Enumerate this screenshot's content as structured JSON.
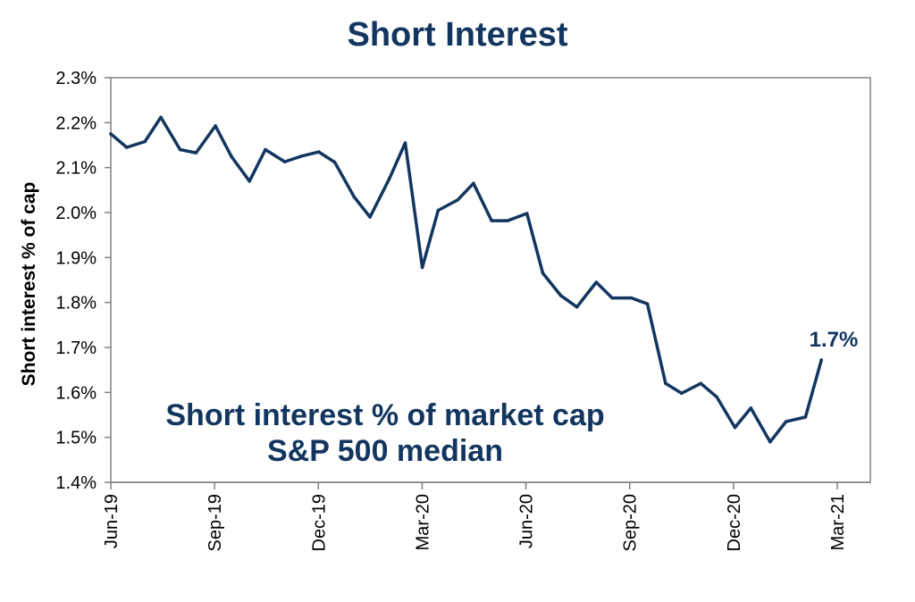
{
  "chart_data": {
    "type": "line",
    "title": "Short Interest",
    "xlabel": "",
    "ylabel": "Short interest % of cap",
    "ylim": [
      1.4,
      2.3
    ],
    "yticks": [
      "2.3%",
      "2.2%",
      "2.1%",
      "2.0%",
      "1.9%",
      "1.8%",
      "1.7%",
      "1.6%",
      "1.5%",
      "1.4%"
    ],
    "xticks": [
      "Jun-19",
      "Sep-19",
      "Dec-19",
      "Mar-20",
      "Jun-20",
      "Sep-20",
      "Dec-20",
      "Mar-21"
    ],
    "xrange": [
      "2019-06-01",
      "2021-03-01"
    ],
    "annotation": [
      "Short interest % of market cap",
      "S&P 500 median"
    ],
    "end_label": "1.7%",
    "grid": false,
    "legend": "none",
    "color": "#12365f",
    "series": [
      {
        "x": [
          "2019-06-01",
          "2019-06-15",
          "2019-07-01",
          "2019-07-15",
          "2019-08-01",
          "2019-08-15",
          "2019-09-01",
          "2019-09-15",
          "2019-10-01",
          "2019-10-15",
          "2019-11-01",
          "2019-11-15",
          "2019-12-01",
          "2019-12-15",
          "2020-01-01",
          "2020-01-15",
          "2020-02-01",
          "2020-02-15",
          "2020-03-01",
          "2020-03-15",
          "2020-04-01",
          "2020-04-15",
          "2020-05-01",
          "2020-05-15",
          "2020-06-01",
          "2020-06-15",
          "2020-07-01",
          "2020-07-15",
          "2020-08-01",
          "2020-08-15",
          "2020-09-01",
          "2020-09-15",
          "2020-10-01",
          "2020-10-15",
          "2020-11-01",
          "2020-11-15",
          "2020-12-01",
          "2020-12-15",
          "2021-01-01",
          "2021-01-15",
          "2021-02-01",
          "2021-02-15"
        ],
        "y": [
          2.175,
          2.145,
          2.158,
          2.212,
          2.14,
          2.133,
          2.193,
          2.125,
          2.07,
          2.14,
          2.113,
          2.125,
          2.135,
          2.112,
          2.035,
          1.99,
          2.075,
          2.155,
          1.878,
          2.005,
          2.028,
          2.065,
          1.982,
          1.982,
          1.998,
          1.865,
          1.815,
          1.79,
          1.845,
          1.81,
          1.81,
          1.797,
          1.62,
          1.598,
          1.62,
          1.59,
          1.522,
          1.565,
          1.49,
          1.535,
          1.545,
          1.672
        ]
      }
    ]
  }
}
